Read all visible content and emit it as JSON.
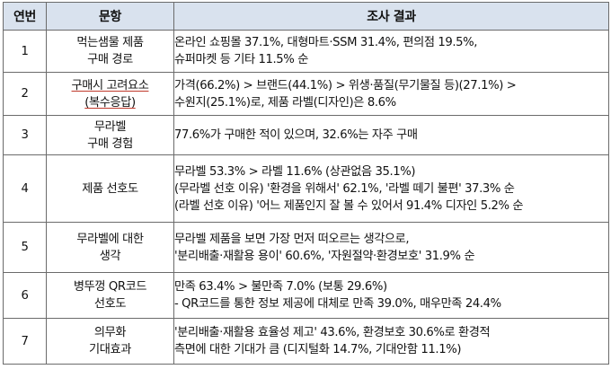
{
  "header": {
    "col_no": "연번",
    "col_item": "문항",
    "col_result": "조사 결과"
  },
  "rows": [
    {
      "no": "1",
      "item_lines": [
        "먹는샘물 제품",
        "구매 경로"
      ],
      "result_lines": [
        "온라인 쇼핑몰 37.1%, 대형마트·SSM 31.4%, 편의점 19.5%,",
        "슈퍼마켓 등 기타 11.5% 순"
      ]
    },
    {
      "no": "2",
      "item_lines": [
        "구매시 고려요소",
        "(복수응답)"
      ],
      "result_lines": [
        "가격(66.2%) > 브랜드(44.1%) > 위생·품질(무기물질 등)(27.1%) >",
        "수원지(25.1%)로, 제품 라벨(디자인)은 8.6%"
      ]
    },
    {
      "no": "3",
      "item_lines": [
        "무라벨",
        "구매 경험"
      ],
      "result_lines": [
        "77.6%가 구매한 적이 있으며, 32.6%는 자주 구매"
      ]
    },
    {
      "no": "4",
      "item_lines": [
        "제품 선호도"
      ],
      "result_lines": [
        "무라벨 53.3% > 라벨 11.6% (상관없음 35.1%)",
        "(무라벨 선호 이유) '환경을 위해서' 62.1%, '라벨 떼기 불편' 37.3% 순",
        "(라벨 선호 이유) '어느 제품인지 잘 볼 수 있어서 91.4% 디자인 5.2% 순"
      ]
    },
    {
      "no": "5",
      "item_lines": [
        "무라벨에 대한",
        "생각"
      ],
      "result_lines": [
        "무라벨 제품을 보면 가장 먼저 떠오르는 생각으로,",
        "'분리배출·재활용 용이' 60.6%, '자원절약·환경보호' 31.9% 순"
      ]
    },
    {
      "no": "6",
      "item_lines": [
        "병뚜껑 QR코드",
        "선호도"
      ],
      "result_lines": [
        "만족 63.4% > 불만족 7.0% (보통 29.6%)",
        "- QR코드를 통한 정보 제공에 대체로 만족 39.0%, 매우만족 24.4%"
      ]
    },
    {
      "no": "7",
      "item_lines": [
        "의무화",
        "기대효과"
      ],
      "result_lines": [
        "'분리배출·재활용 효율성 제고' 43.6%, 환경보호 30.6%로 환경적",
        "측면에 대한 기대가 큼 (디지털화 14.7%, 기대안함 11.1%)"
      ]
    }
  ],
  "colors": {
    "header_bg": "#d9e2ee",
    "border": "#6b6b6b",
    "underline": "#c0392b"
  }
}
